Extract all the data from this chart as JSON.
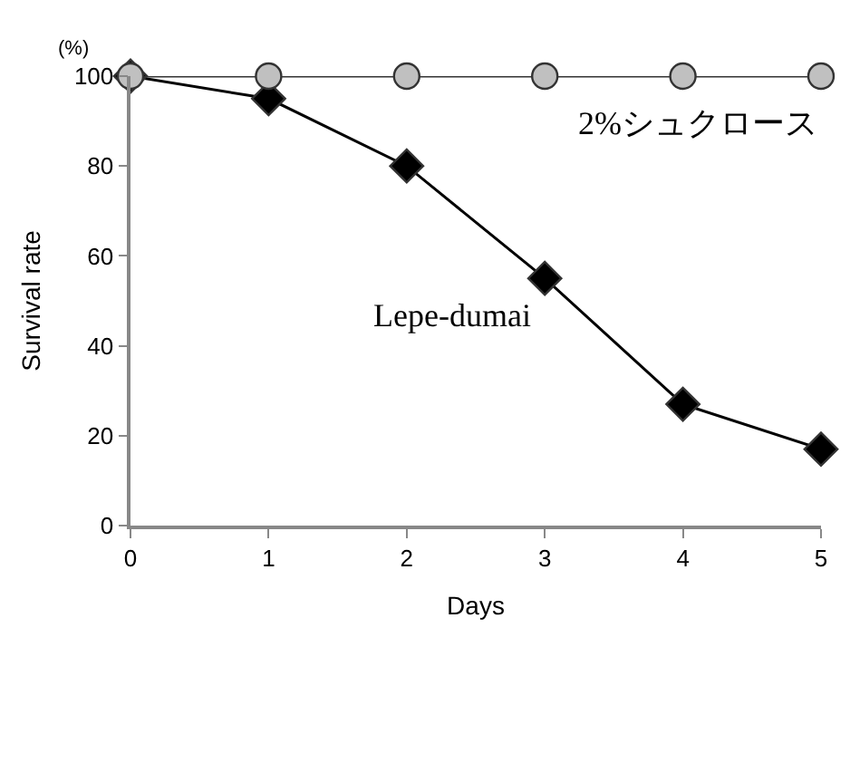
{
  "chart_data": {
    "type": "line",
    "xlabel": "Days",
    "ylabel": "Survival rate",
    "annotations": [
      "(%)"
    ],
    "x": [
      0,
      1,
      2,
      3,
      4,
      5
    ],
    "series": [
      {
        "name": "Lepe-dumai",
        "color": "#000000",
        "marker": "diamond",
        "values": [
          100,
          95,
          80,
          55,
          27,
          17
        ]
      },
      {
        "name": "2%シュクロース",
        "color": "#c0c0c0",
        "marker": "circle",
        "values": [
          100,
          100,
          100,
          100,
          100,
          100
        ]
      }
    ],
    "xlim": [
      0,
      5
    ],
    "xticks": [
      0,
      1,
      2,
      3,
      4,
      5
    ],
    "ylim": [
      0,
      100
    ],
    "yticks": [
      0,
      20,
      40,
      60,
      80,
      100
    ],
    "grid": false,
    "legend": false
  }
}
